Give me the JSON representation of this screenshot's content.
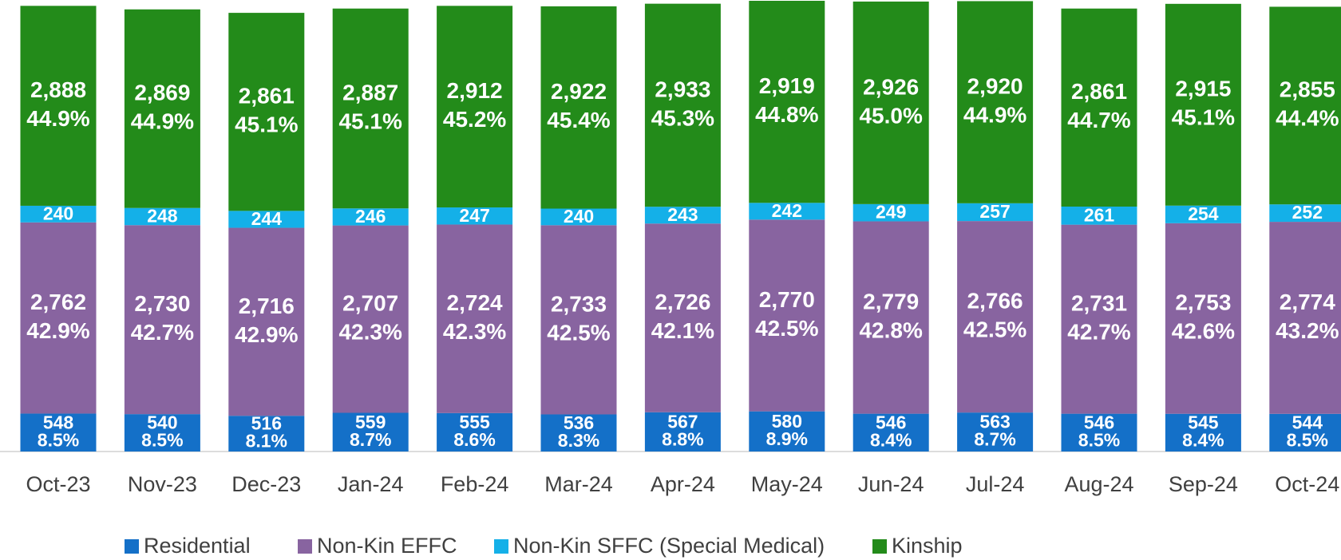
{
  "chart_data": {
    "type": "stacked-bar",
    "categories": [
      "Oct-23",
      "Nov-23",
      "Dec-23",
      "Jan-24",
      "Feb-24",
      "Mar-24",
      "Apr-24",
      "May-24",
      "Jun-24",
      "Jul-24",
      "Aug-24",
      "Sep-24",
      "Oct-24"
    ],
    "series": [
      {
        "name": "Residential",
        "color": "#1470c8",
        "values": [
          548,
          540,
          516,
          559,
          555,
          536,
          567,
          580,
          546,
          563,
          546,
          545,
          544
        ],
        "share_labels": [
          "8.5%",
          "8.5%",
          "8.1%",
          "8.7%",
          "8.6%",
          "8.3%",
          "8.8%",
          "8.9%",
          "8.4%",
          "8.7%",
          "8.5%",
          "8.4%",
          "8.5%"
        ]
      },
      {
        "name": "Non-Kin EFFC",
        "color": "#8864a0",
        "values": [
          2762,
          2730,
          2716,
          2707,
          2724,
          2733,
          2726,
          2770,
          2779,
          2766,
          2731,
          2753,
          2774
        ],
        "value_labels": [
          "2,762",
          "2,730",
          "2,716",
          "2,707",
          "2,724",
          "2,733",
          "2,726",
          "2,770",
          "2,779",
          "2,766",
          "2,731",
          "2,753",
          "2,774"
        ],
        "share_labels": [
          "42.9%",
          "42.7%",
          "42.9%",
          "42.3%",
          "42.3%",
          "42.5%",
          "42.1%",
          "42.5%",
          "42.8%",
          "42.5%",
          "42.7%",
          "42.6%",
          "43.2%"
        ]
      },
      {
        "name": "Non-Kin SFFC (Special Medical)",
        "color": "#14b0e8",
        "values": [
          240,
          248,
          244,
          246,
          247,
          240,
          243,
          242,
          249,
          257,
          261,
          254,
          252
        ]
      },
      {
        "name": "Kinship",
        "color": "#238b1a",
        "values": [
          2888,
          2869,
          2861,
          2887,
          2912,
          2922,
          2933,
          2919,
          2926,
          2920,
          2861,
          2915,
          2855
        ],
        "value_labels": [
          "2,888",
          "2,869",
          "2,861",
          "2,887",
          "2,912",
          "2,922",
          "2,933",
          "2,919",
          "2,926",
          "2,920",
          "2,861",
          "2,915",
          "2,855"
        ],
        "share_labels": [
          "44.9%",
          "44.9%",
          "45.1%",
          "45.1%",
          "45.2%",
          "45.4%",
          "45.3%",
          "44.8%",
          "45.0%",
          "44.9%",
          "44.7%",
          "45.1%",
          "44.4%"
        ]
      }
    ],
    "legend": "bottom"
  }
}
